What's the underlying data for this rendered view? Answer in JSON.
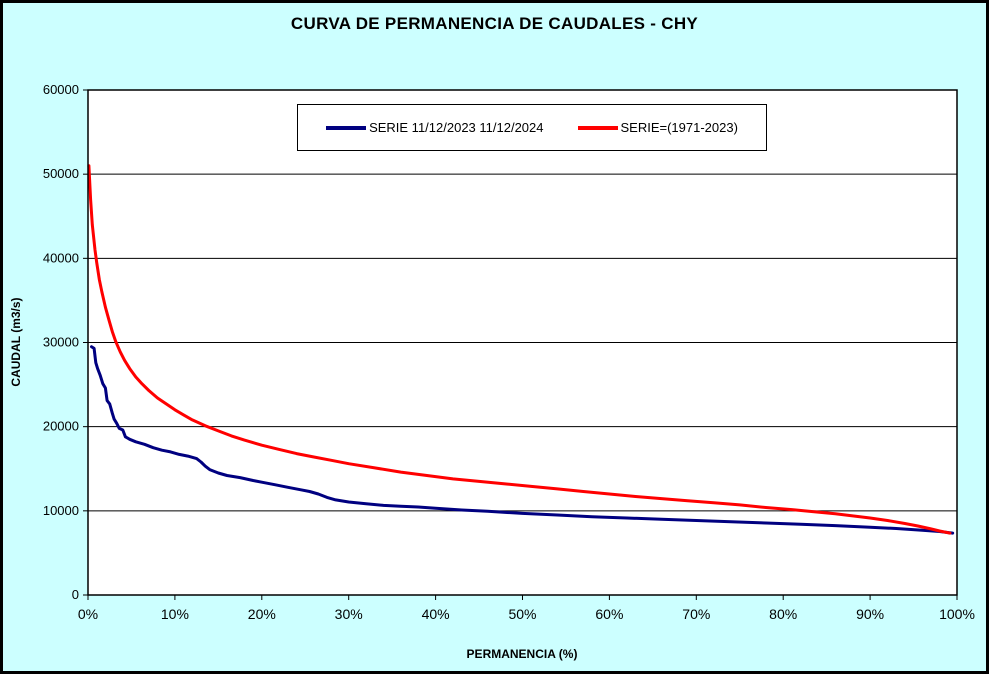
{
  "chart_data": {
    "type": "line",
    "title": "CURVA DE PERMANENCIA DE CAUDALES - CHY",
    "xlabel": "PERMANENCIA (%)",
    "ylabel": "CAUDAL (m3/s)",
    "xlim": [
      0,
      100
    ],
    "ylim": [
      0,
      60000
    ],
    "x_ticks": [
      "0%",
      "10%",
      "20%",
      "30%",
      "40%",
      "50%",
      "60%",
      "70%",
      "80%",
      "90%",
      "100%"
    ],
    "x_tick_values": [
      0,
      10,
      20,
      30,
      40,
      50,
      60,
      70,
      80,
      90,
      100
    ],
    "y_ticks": [
      "0",
      "10000",
      "20000",
      "30000",
      "40000",
      "50000",
      "60000"
    ],
    "y_tick_values": [
      0,
      10000,
      20000,
      30000,
      40000,
      50000,
      60000
    ],
    "grid": "horizontal",
    "legend_position": "top-center",
    "background_color": "#CCFFFF",
    "plot_background": "#FFFFFF",
    "series": [
      {
        "name": "SERIE 11/12/2023 11/12/2024",
        "color": "#000080",
        "width": 3,
        "points": [
          [
            0.4,
            29500
          ],
          [
            0.7,
            29300
          ],
          [
            0.9,
            27600
          ],
          [
            1.1,
            26900
          ],
          [
            1.4,
            26100
          ],
          [
            1.7,
            25100
          ],
          [
            2.0,
            24600
          ],
          [
            2.2,
            23100
          ],
          [
            2.5,
            22700
          ],
          [
            2.8,
            21600
          ],
          [
            3.0,
            20900
          ],
          [
            3.3,
            20400
          ],
          [
            3.6,
            19800
          ],
          [
            4.0,
            19600
          ],
          [
            4.3,
            18800
          ],
          [
            4.8,
            18500
          ],
          [
            5.5,
            18200
          ],
          [
            6.5,
            17900
          ],
          [
            7.5,
            17500
          ],
          [
            8.5,
            17200
          ],
          [
            9.5,
            17000
          ],
          [
            10.5,
            16700
          ],
          [
            11.5,
            16500
          ],
          [
            12.5,
            16200
          ],
          [
            13.0,
            15800
          ],
          [
            13.5,
            15300
          ],
          [
            14.0,
            14900
          ],
          [
            15.0,
            14500
          ],
          [
            16.0,
            14200
          ],
          [
            17.5,
            13950
          ],
          [
            19.0,
            13600
          ],
          [
            20.0,
            13400
          ],
          [
            21.5,
            13100
          ],
          [
            23.0,
            12800
          ],
          [
            24.5,
            12500
          ],
          [
            25.5,
            12300
          ],
          [
            26.5,
            12000
          ],
          [
            27.5,
            11600
          ],
          [
            28.5,
            11300
          ],
          [
            30.0,
            11050
          ],
          [
            32.0,
            10850
          ],
          [
            34.0,
            10650
          ],
          [
            36.0,
            10550
          ],
          [
            38.0,
            10450
          ],
          [
            40.0,
            10300
          ],
          [
            43.0,
            10100
          ],
          [
            46.0,
            9950
          ],
          [
            50.0,
            9700
          ],
          [
            54.0,
            9500
          ],
          [
            58.0,
            9300
          ],
          [
            62.0,
            9150
          ],
          [
            66.0,
            9000
          ],
          [
            70.0,
            8850
          ],
          [
            74.0,
            8700
          ],
          [
            78.0,
            8550
          ],
          [
            82.0,
            8400
          ],
          [
            86.0,
            8250
          ],
          [
            90.0,
            8050
          ],
          [
            93.0,
            7900
          ],
          [
            96.0,
            7700
          ],
          [
            98.0,
            7550
          ],
          [
            99.5,
            7350
          ]
        ]
      },
      {
        "name": "SERIE=(1971-2023)",
        "color": "#FF0000",
        "width": 3,
        "points": [
          [
            0.1,
            51000
          ],
          [
            0.3,
            47000
          ],
          [
            0.5,
            44000
          ],
          [
            0.8,
            41000
          ],
          [
            1.0,
            39500
          ],
          [
            1.3,
            37500
          ],
          [
            1.6,
            36000
          ],
          [
            2.0,
            34200
          ],
          [
            2.4,
            32700
          ],
          [
            2.8,
            31300
          ],
          [
            3.2,
            30100
          ],
          [
            3.7,
            28900
          ],
          [
            4.2,
            27900
          ],
          [
            4.8,
            26900
          ],
          [
            5.5,
            25900
          ],
          [
            6.2,
            25100
          ],
          [
            7.0,
            24300
          ],
          [
            8.0,
            23400
          ],
          [
            9.0,
            22700
          ],
          [
            10.0,
            22000
          ],
          [
            11.0,
            21400
          ],
          [
            12.0,
            20800
          ],
          [
            13.5,
            20100
          ],
          [
            15.0,
            19500
          ],
          [
            16.5,
            18900
          ],
          [
            18.0,
            18400
          ],
          [
            20.0,
            17800
          ],
          [
            22.0,
            17300
          ],
          [
            24.0,
            16800
          ],
          [
            26.0,
            16400
          ],
          [
            28.0,
            16000
          ],
          [
            30.0,
            15600
          ],
          [
            33.0,
            15100
          ],
          [
            36.0,
            14600
          ],
          [
            39.0,
            14200
          ],
          [
            42.0,
            13800
          ],
          [
            45.0,
            13500
          ],
          [
            48.0,
            13200
          ],
          [
            51.0,
            12900
          ],
          [
            54.0,
            12600
          ],
          [
            57.0,
            12300
          ],
          [
            60.0,
            12000
          ],
          [
            63.0,
            11700
          ],
          [
            66.0,
            11450
          ],
          [
            69.0,
            11200
          ],
          [
            72.0,
            10950
          ],
          [
            75.0,
            10700
          ],
          [
            78.0,
            10400
          ],
          [
            81.0,
            10150
          ],
          [
            84.0,
            9850
          ],
          [
            86.0,
            9650
          ],
          [
            88.0,
            9400
          ],
          [
            90.0,
            9150
          ],
          [
            92.0,
            8850
          ],
          [
            94.0,
            8500
          ],
          [
            95.5,
            8200
          ],
          [
            97.0,
            7850
          ],
          [
            98.0,
            7600
          ],
          [
            99.2,
            7350
          ]
        ]
      }
    ]
  }
}
